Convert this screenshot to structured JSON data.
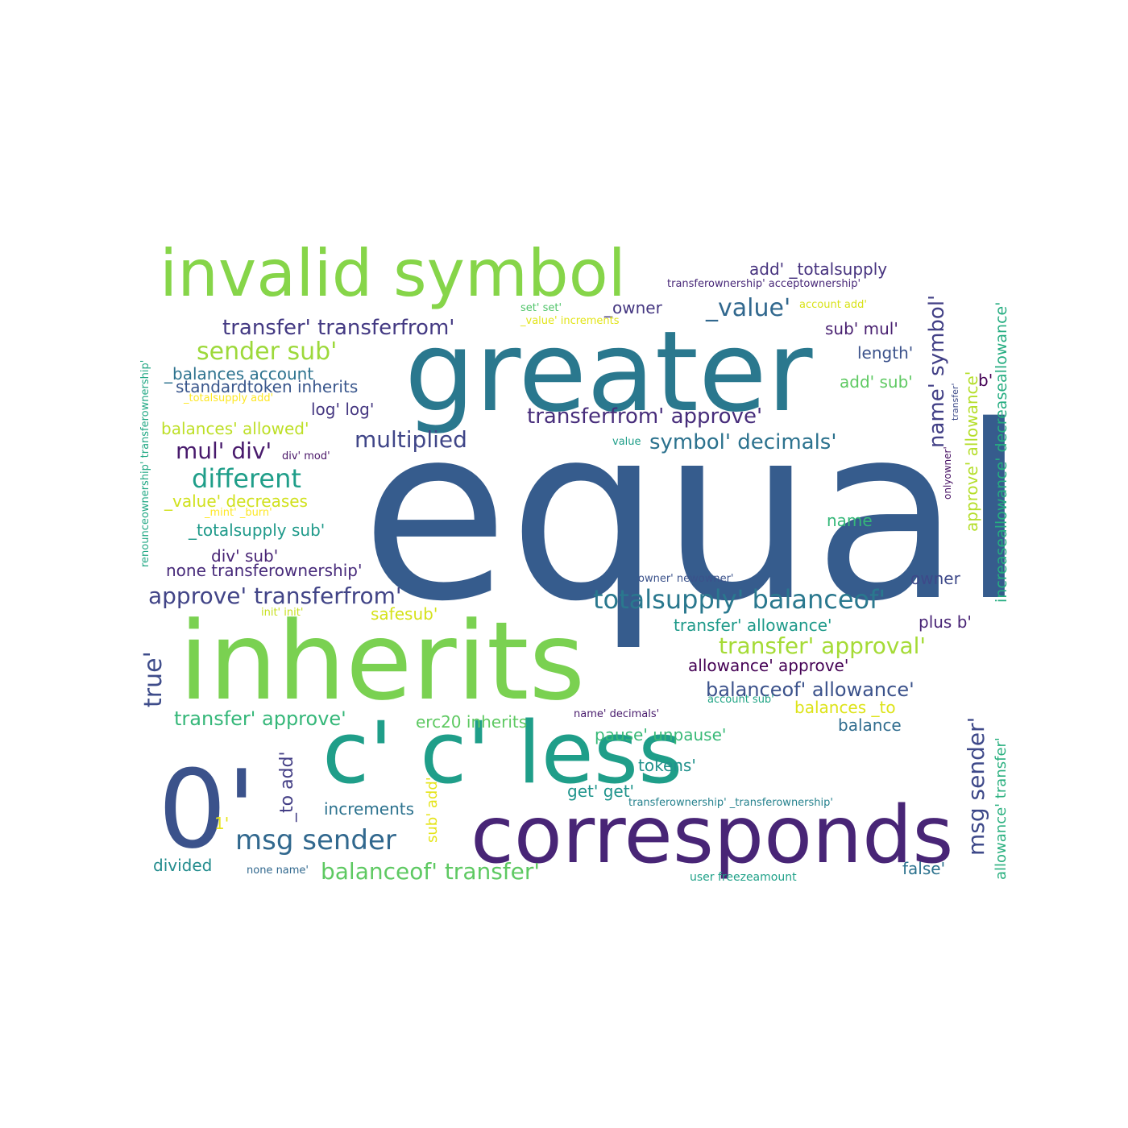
{
  "words": [
    {
      "text": "equal",
      "color": "#365c8d"
    },
    {
      "text": "inherits",
      "color": "#7ad151"
    },
    {
      "text": "greater",
      "color": "#2a788e"
    },
    {
      "text": "corresponds",
      "color": "#482576"
    },
    {
      "text": "c' c' less",
      "color": "#1f9e89"
    },
    {
      "text": "invalid symbol",
      "color": "#86d549"
    },
    {
      "text": "0'",
      "color": "#3b528b"
    },
    {
      "text": "totalsupply' balanceof'",
      "color": "#2a788e"
    },
    {
      "text": "approve' transferfrom'",
      "color": "#414487"
    },
    {
      "text": "transfer' approval'",
      "color": "#a5db36"
    },
    {
      "text": "balanceof' transfer'",
      "color": "#5ec962"
    },
    {
      "text": "msg sender",
      "color": "#31688e"
    },
    {
      "text": "msg sender'",
      "color": "#3e4989"
    },
    {
      "text": "name' symbol'",
      "color": "#424086"
    },
    {
      "text": "different",
      "color": "#1f9e89"
    },
    {
      "text": "sender sub'",
      "color": "#9dd93b"
    },
    {
      "text": "transfer' transferfrom'",
      "color": "#443a83"
    },
    {
      "text": "transferfrom' approve'",
      "color": "#472d7b"
    },
    {
      "text": "_value'",
      "color": "#31688e"
    },
    {
      "text": "multiplied",
      "color": "#404688"
    },
    {
      "text": "mul' div'",
      "color": "#481a6c"
    },
    {
      "text": "symbol' decimals'",
      "color": "#2c728e"
    },
    {
      "text": "true'",
      "color": "#3e4c8a"
    },
    {
      "text": "balanceof' allowance'",
      "color": "#3b528b"
    },
    {
      "text": "transfer' approve'",
      "color": "#35b779"
    },
    {
      "text": "approve' allowance'",
      "color": "#b5de2b"
    },
    {
      "text": "increaseallowance' decreaseallowance'",
      "color": "#26ad81"
    },
    {
      "text": "allowance' transfer'",
      "color": "#2ab07f"
    },
    {
      "text": "renounceownership' transferownership'",
      "color": "#22a884"
    },
    {
      "text": "_to add'",
      "color": "#433e85"
    },
    {
      "text": "sub' add'",
      "color": "#e5e419"
    },
    {
      "text": "erc20 inherits",
      "color": "#5ec962"
    },
    {
      "text": "increments",
      "color": "#2c728e"
    },
    {
      "text": "pause' unpause'",
      "color": "#38b977"
    },
    {
      "text": "tokens'",
      "color": "#21918c"
    },
    {
      "text": "get' get'",
      "color": "#1f948c"
    },
    {
      "text": "divided",
      "color": "#228c8d"
    },
    {
      "text": "false'",
      "color": "#2c728e"
    },
    {
      "text": "balances _to",
      "color": "#dde318"
    },
    {
      "text": "balance",
      "color": "#2f6c8e"
    },
    {
      "text": "add' _totalsupply",
      "color": "#46327e"
    },
    {
      "text": "transferownership' acceptownership'",
      "color": "#482878"
    },
    {
      "text": "set' set'",
      "color": "#50c46a"
    },
    {
      "text": "_owner",
      "color": "#453781"
    },
    {
      "text": "account add'",
      "color": "#d8e219"
    },
    {
      "text": "_value' increments",
      "color": "#e2e418"
    },
    {
      "text": "sub' mul'",
      "color": "#481f70"
    },
    {
      "text": "length'",
      "color": "#3b528b"
    },
    {
      "text": "add' sub'",
      "color": "#5ec962"
    },
    {
      "text": "b'",
      "color": "#440154"
    },
    {
      "text": "transfer'",
      "color": "#3e4c8a"
    },
    {
      "text": "onlyowner'",
      "color": "#471063"
    },
    {
      "text": "_balances account",
      "color": "#2c728e"
    },
    {
      "text": "standardtoken inherits",
      "color": "#39568c"
    },
    {
      "text": "_totalsupply add'",
      "color": "#fde725"
    },
    {
      "text": "log' log'",
      "color": "#453781"
    },
    {
      "text": "balances' allowed'",
      "color": "#bddf26"
    },
    {
      "text": "value",
      "color": "#1f9e89"
    },
    {
      "text": "div' mod'",
      "color": "#481467"
    },
    {
      "text": "_value' decreases",
      "color": "#d0e11c"
    },
    {
      "text": "_mint' _burn'",
      "color": "#fde725"
    },
    {
      "text": "_totalsupply sub'",
      "color": "#1f9a8a"
    },
    {
      "text": "name",
      "color": "#35b779"
    },
    {
      "text": "div' sub'",
      "color": "#482475"
    },
    {
      "text": "none transferownership'",
      "color": "#472a7a"
    },
    {
      "text": "owner' newowner'",
      "color": "#3b528b"
    },
    {
      "text": "owner",
      "color": "#3e4989"
    },
    {
      "text": "init' init'",
      "color": "#c8e020"
    },
    {
      "text": "safesub'",
      "color": "#d5e21a"
    },
    {
      "text": "transfer' allowance'",
      "color": "#1f9a8a"
    },
    {
      "text": "plus b'",
      "color": "#482475"
    },
    {
      "text": "allowance' approve'",
      "color": "#440154"
    },
    {
      "text": "name' decimals'",
      "color": "#481a6c"
    },
    {
      "text": "account sub'",
      "color": "#21a585"
    },
    {
      "text": "transferownership' _transferownership'",
      "color": "#26828e"
    },
    {
      "text": "1'",
      "color": "#e7e419"
    },
    {
      "text": "none name'",
      "color": "#31688e"
    },
    {
      "text": "user freezeamount",
      "color": "#1fa188"
    }
  ]
}
